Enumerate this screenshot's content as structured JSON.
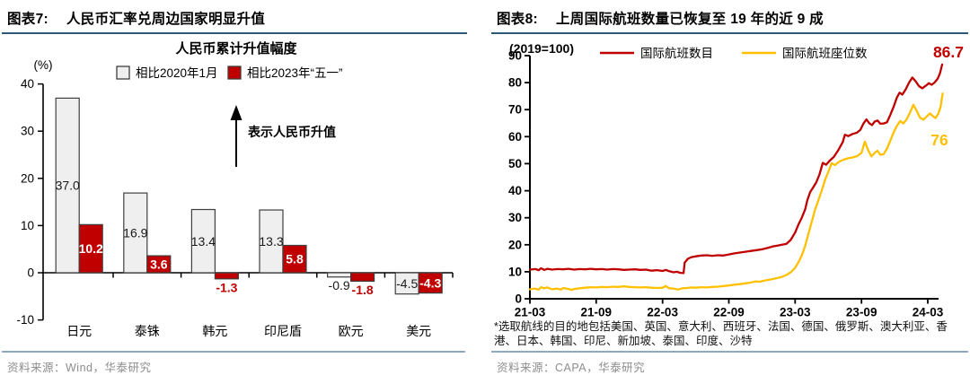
{
  "colors": {
    "red": "#C00000",
    "gold": "#FFC000",
    "gray_fill": "#EFEFEF",
    "bar_stroke": "#3F3F3F",
    "header_rule": "#2E5877",
    "footer_rule": "#8FA9C4",
    "axis": "#000000",
    "source_text": "#8C8C8C"
  },
  "left_panel": {
    "title_prefix": "图表7:",
    "title": "人民币汇率兑周边国家明显升值",
    "source": "资料来源：Wind，华泰研究",
    "chart_data": {
      "type": "bar",
      "title": "人民币累计升值幅度",
      "unit_label": "(%)",
      "categories": [
        "日元",
        "泰铢",
        "韩元",
        "印尼盾",
        "欧元",
        "美元"
      ],
      "series": [
        {
          "name": "相比2020年1月",
          "color": "#EFEFEF",
          "values": [
            37.0,
            16.9,
            13.4,
            13.3,
            -0.9,
            -4.5
          ]
        },
        {
          "name": "相比2023年“五一”",
          "color": "#C00000",
          "values": [
            10.2,
            3.6,
            -1.3,
            5.8,
            -1.8,
            -4.3
          ]
        }
      ],
      "ylim": [
        -10,
        40
      ],
      "yticks": [
        40,
        30,
        20,
        10,
        0,
        -10
      ],
      "annotation": "表示人民币升值",
      "grid": false,
      "legend_position": "top-center"
    }
  },
  "right_panel": {
    "title_prefix": "图表8:",
    "title": "上周国际航班数量已恢复至 19 年的近 9 成",
    "source": "资料来源：CAPA，华泰研究",
    "footnote": "*选取航线的目的地包括美国、英国、意大利、西班牙、法国、德国、俄罗斯、澳大利亚、香港、日本、韩国、印尼、新加坡、泰国、印度、沙特",
    "chart_data": {
      "type": "line",
      "index_label": "(2019=100)",
      "x_unit": "months since 2021-03",
      "xtick_labels": [
        "21-03",
        "21-09",
        "22-03",
        "22-09",
        "23-03",
        "23-09",
        "24-03"
      ],
      "xtick_months": [
        0,
        6,
        12,
        18,
        24,
        30,
        36
      ],
      "ylim": [
        0,
        90
      ],
      "yticks": [
        0,
        10,
        20,
        30,
        40,
        50,
        60,
        70,
        80,
        90
      ],
      "grid": false,
      "legend_position": "top-center",
      "series": [
        {
          "name": "国际航班数目",
          "color": "#C00000",
          "end_label": "86.7",
          "points": [
            [
              0,
              10.8
            ],
            [
              0.5,
              11
            ],
            [
              0.8,
              10.6
            ],
            [
              1,
              11.3
            ],
            [
              1.3,
              10.7
            ],
            [
              1.6,
              11.1
            ],
            [
              2,
              10.8
            ],
            [
              2.5,
              11
            ],
            [
              3,
              10.9
            ],
            [
              3.5,
              11.1
            ],
            [
              4,
              10.8
            ],
            [
              4.5,
              11
            ],
            [
              5,
              10.9
            ],
            [
              5.5,
              11.1
            ],
            [
              6,
              10.9
            ],
            [
              6.5,
              11
            ],
            [
              7,
              10.8
            ],
            [
              7.5,
              11
            ],
            [
              8,
              10.9
            ],
            [
              8.5,
              10.7
            ],
            [
              9,
              10.8
            ],
            [
              9.5,
              10.9
            ],
            [
              10,
              10.7
            ],
            [
              10.5,
              10.8
            ],
            [
              11,
              10.4
            ],
            [
              11.5,
              10.6
            ],
            [
              12,
              10.3
            ],
            [
              12.3,
              10.7
            ],
            [
              12.6,
              10.2
            ],
            [
              13,
              9.8
            ],
            [
              13.3,
              10
            ],
            [
              13.6,
              9.6
            ],
            [
              13.9,
              9.5
            ],
            [
              14,
              13.4
            ],
            [
              14.3,
              14.8
            ],
            [
              14.6,
              15.4
            ],
            [
              15,
              15.7
            ],
            [
              15.5,
              16
            ],
            [
              16,
              16.1
            ],
            [
              16.5,
              15.9
            ],
            [
              17,
              16.1
            ],
            [
              17.5,
              16
            ],
            [
              18,
              16.4
            ],
            [
              18.5,
              16.8
            ],
            [
              19,
              17.1
            ],
            [
              19.5,
              17.4
            ],
            [
              20,
              17.7
            ],
            [
              20.5,
              18
            ],
            [
              21,
              18.3
            ],
            [
              21.5,
              18.8
            ],
            [
              22,
              19.4
            ],
            [
              22.4,
              19.7
            ],
            [
              22.8,
              20
            ],
            [
              23.2,
              20.3
            ],
            [
              23.6,
              21.8
            ],
            [
              24,
              24.5
            ],
            [
              24.3,
              27.5
            ],
            [
              24.6,
              30
            ],
            [
              24.9,
              33
            ],
            [
              25.1,
              36.5
            ],
            [
              25.35,
              39.5
            ],
            [
              25.6,
              41
            ],
            [
              25.9,
              43
            ],
            [
              26.2,
              46
            ],
            [
              26.5,
              50.3
            ],
            [
              26.8,
              49.6
            ],
            [
              27.1,
              51
            ],
            [
              27.5,
              52.5
            ],
            [
              27.9,
              55
            ],
            [
              28.3,
              58
            ],
            [
              28.5,
              60.7
            ],
            [
              28.8,
              60.2
            ],
            [
              29.2,
              61
            ],
            [
              29.6,
              61.5
            ],
            [
              29.9,
              62.5
            ],
            [
              30.2,
              65
            ],
            [
              30.45,
              66.4
            ],
            [
              30.7,
              65
            ],
            [
              30.95,
              64.3
            ],
            [
              31.2,
              65.6
            ],
            [
              31.45,
              66
            ],
            [
              31.7,
              64.8
            ],
            [
              32,
              64.9
            ],
            [
              32.3,
              65.3
            ],
            [
              32.6,
              68
            ],
            [
              32.9,
              71
            ],
            [
              33.2,
              74.5
            ],
            [
              33.45,
              76.3
            ],
            [
              33.7,
              75.6
            ],
            [
              34,
              77.5
            ],
            [
              34.3,
              80
            ],
            [
              34.6,
              81.9
            ],
            [
              34.9,
              80.5
            ],
            [
              35.2,
              78.7
            ],
            [
              35.5,
              77.9
            ],
            [
              35.8,
              78.8
            ],
            [
              36.1,
              79.8
            ],
            [
              36.35,
              79.2
            ],
            [
              36.6,
              80
            ],
            [
              36.9,
              81.5
            ],
            [
              37.1,
              83.5
            ],
            [
              37.3,
              86.7
            ]
          ]
        },
        {
          "name": "国际航班座位数",
          "color": "#FFC000",
          "end_label": "76",
          "points": [
            [
              0,
              3.5
            ],
            [
              0.4,
              3.8
            ],
            [
              0.8,
              3.4
            ],
            [
              1,
              4.3
            ],
            [
              1.3,
              3.9
            ],
            [
              1.6,
              4.2
            ],
            [
              2,
              3.5
            ],
            [
              2.4,
              3.8
            ],
            [
              2.8,
              3.4
            ],
            [
              3,
              4
            ],
            [
              3.4,
              3.7
            ],
            [
              3.8,
              3.3
            ],
            [
              4,
              3.6
            ],
            [
              4.5,
              3.9
            ],
            [
              5,
              4.1
            ],
            [
              5.5,
              4.3
            ],
            [
              6,
              4.2
            ],
            [
              6.5,
              4.4
            ],
            [
              7,
              4.3
            ],
            [
              7.5,
              4.5
            ],
            [
              8,
              4.4
            ],
            [
              8.5,
              4.6
            ],
            [
              9,
              4.4
            ],
            [
              9.5,
              4.3
            ],
            [
              10,
              4.2
            ],
            [
              10.5,
              4.3
            ],
            [
              11,
              4.1
            ],
            [
              11.5,
              4
            ],
            [
              12,
              4.1
            ],
            [
              12.3,
              4.7
            ],
            [
              12.6,
              3.9
            ],
            [
              13,
              3.8
            ],
            [
              13.4,
              3.4
            ],
            [
              13.8,
              3.9
            ],
            [
              14.2,
              4
            ],
            [
              14.6,
              4.2
            ],
            [
              15,
              4.1
            ],
            [
              15.5,
              4.3
            ],
            [
              16,
              4.2
            ],
            [
              16.5,
              4.4
            ],
            [
              17,
              4.5
            ],
            [
              17.5,
              4.7
            ],
            [
              18,
              4.9
            ],
            [
              18.5,
              5.2
            ],
            [
              19,
              5.4
            ],
            [
              19.5,
              5.7
            ],
            [
              20,
              6
            ],
            [
              20.4,
              6.4
            ],
            [
              20.8,
              6.3
            ],
            [
              21.2,
              6.7
            ],
            [
              21.6,
              7
            ],
            [
              22,
              7.3
            ],
            [
              22.4,
              7.7
            ],
            [
              22.8,
              8.1
            ],
            [
              23.2,
              8.8
            ],
            [
              23.6,
              9.8
            ],
            [
              24,
              11.5
            ],
            [
              24.3,
              13.5
            ],
            [
              24.6,
              16
            ],
            [
              24.9,
              19.5
            ],
            [
              25.2,
              24
            ],
            [
              25.5,
              28.5
            ],
            [
              25.8,
              33
            ],
            [
              26.1,
              36.5
            ],
            [
              26.4,
              40
            ],
            [
              26.7,
              44
            ],
            [
              27,
              47
            ],
            [
              27.3,
              50.2
            ],
            [
              27.6,
              49.5
            ],
            [
              28,
              50.8
            ],
            [
              28.4,
              51.5
            ],
            [
              28.8,
              52
            ],
            [
              29.2,
              52.3
            ],
            [
              29.6,
              52.8
            ],
            [
              30,
              54
            ],
            [
              30.3,
              58.2
            ],
            [
              30.6,
              55
            ],
            [
              30.9,
              52.7
            ],
            [
              31.2,
              54
            ],
            [
              31.45,
              54.8
            ],
            [
              31.7,
              53.3
            ],
            [
              32,
              53.5
            ],
            [
              32.3,
              55.5
            ],
            [
              32.6,
              58.5
            ],
            [
              32.9,
              61.5
            ],
            [
              33.2,
              64
            ],
            [
              33.5,
              65.8
            ],
            [
              33.8,
              64.9
            ],
            [
              34.1,
              66.5
            ],
            [
              34.4,
              69
            ],
            [
              34.7,
              71.8
            ],
            [
              35,
              69.5
            ],
            [
              35.3,
              67
            ],
            [
              35.6,
              66.3
            ],
            [
              35.9,
              67.5
            ],
            [
              36.2,
              68.6
            ],
            [
              36.45,
              67.6
            ],
            [
              36.7,
              66.9
            ],
            [
              36.95,
              68.5
            ],
            [
              37.15,
              71
            ],
            [
              37.35,
              76
            ]
          ]
        }
      ]
    }
  }
}
